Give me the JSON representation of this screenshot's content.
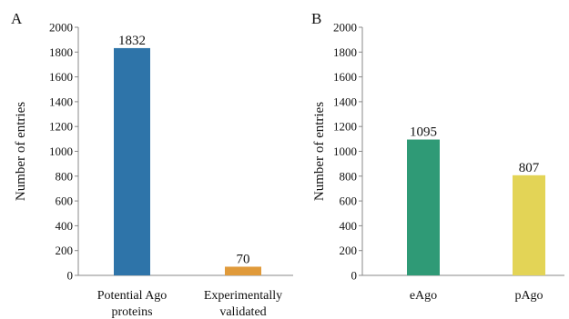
{
  "chart_data": [
    {
      "type": "bar",
      "panel": "A",
      "categories": [
        [
          "Potential Ago",
          "proteins"
        ],
        [
          "Experimentally",
          "validated"
        ]
      ],
      "values": [
        1832,
        70
      ],
      "data_labels": [
        "1832",
        "70"
      ],
      "colors": [
        "#2e74a9",
        "#e09a3a"
      ],
      "ylabel": "Number of entries",
      "xlabel": "",
      "ylim": [
        0,
        2000
      ],
      "yticks": [
        0,
        200,
        400,
        600,
        800,
        1000,
        1200,
        1400,
        1600,
        1800,
        2000
      ],
      "grid": false,
      "legend": "none"
    },
    {
      "type": "bar",
      "panel": "B",
      "categories": [
        [
          "eAgo"
        ],
        [
          "pAgo"
        ]
      ],
      "values": [
        1095,
        807
      ],
      "data_labels": [
        "1095",
        "807"
      ],
      "colors": [
        "#2f9a76",
        "#e3d456"
      ],
      "ylabel": "Number of entries",
      "xlabel": "",
      "ylim": [
        0,
        2000
      ],
      "yticks": [
        0,
        200,
        400,
        600,
        800,
        1000,
        1200,
        1400,
        1600,
        1800,
        2000
      ],
      "grid": false,
      "legend": "none"
    }
  ]
}
